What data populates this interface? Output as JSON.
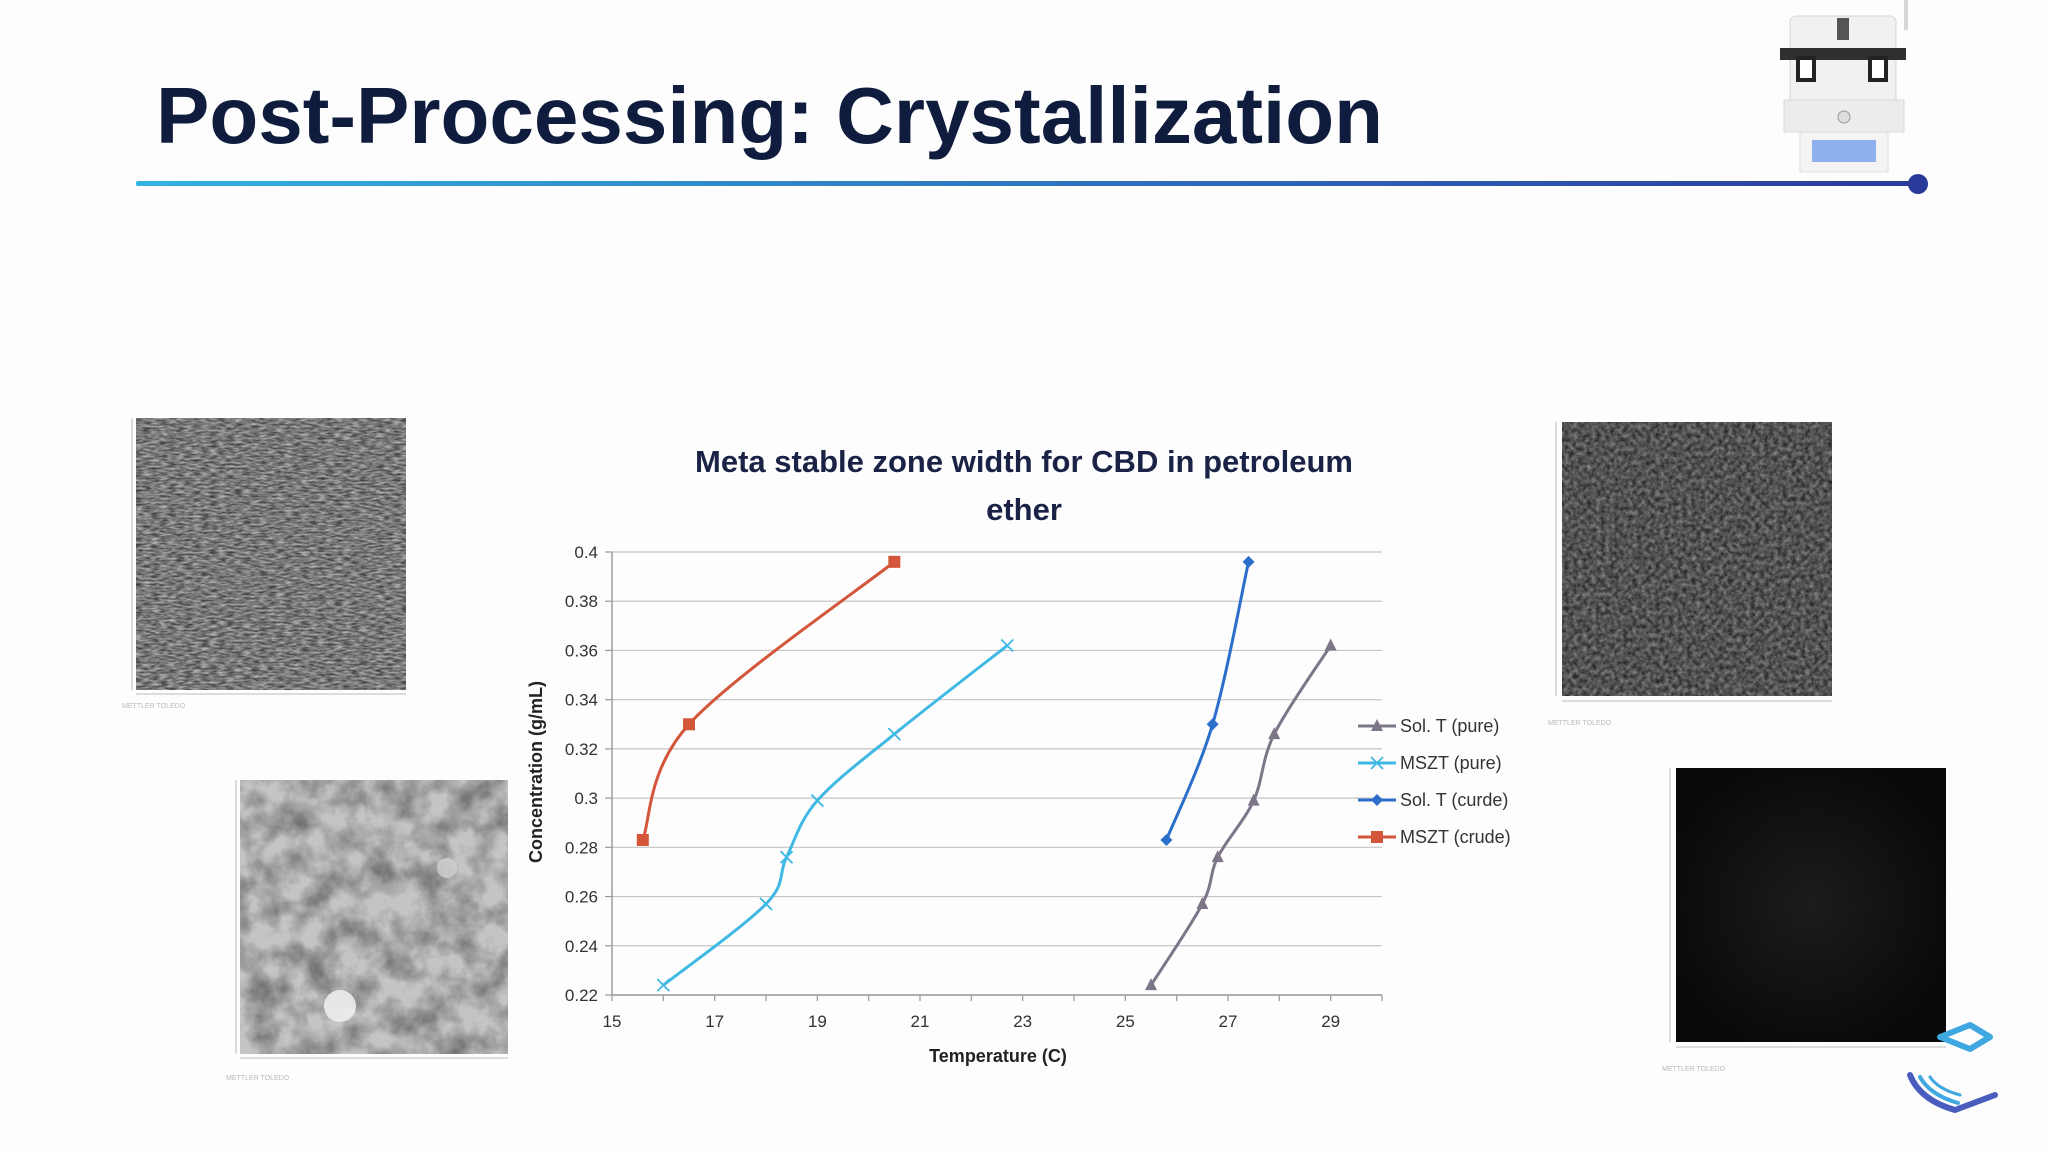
{
  "slide": {
    "title": "Post-Processing: Crystallization"
  },
  "colors": {
    "title_text": "#101c3d",
    "rule_start": "#33b1e3",
    "rule_end": "#2b3a9a",
    "sol_pure": "#7d7689",
    "mszt_pure": "#3fb8e3",
    "sol_crude": "#2b6fcb",
    "mszt_crude": "#d3553a"
  },
  "icons": {
    "top_right": "lab-instrument-icon",
    "bottom_right": "company-logo-mark"
  },
  "photos": [
    {
      "name": "microscopy-image-pure-needles",
      "caption": "METTLER TOLEDO"
    },
    {
      "name": "microscopy-image-crude-clusters",
      "caption": "METTLER TOLEDO"
    },
    {
      "name": "microscopy-image-dark-texture",
      "caption": "METTLER TOLEDO"
    },
    {
      "name": "microscopy-image-dark-blank",
      "caption": "METTLER TOLEDO"
    }
  ],
  "chart_data": {
    "type": "line",
    "title": "Meta stable zone width for CBD in petroleum ether",
    "title_lines": [
      "Meta stable zone width for CBD in petroleum",
      "ether"
    ],
    "xlabel": "Temperature (C)",
    "ylabel": "Concentration (g/mL)",
    "xlim": [
      15,
      30
    ],
    "ylim": [
      0.22,
      0.4
    ],
    "xticks": [
      "15",
      "17",
      "19",
      "21",
      "23",
      "25",
      "27",
      "29"
    ],
    "yticks": [
      "0.22",
      "0.24",
      "0.26",
      "0.28",
      "0.3",
      "0.32",
      "0.34",
      "0.36",
      "0.38",
      "0.4"
    ],
    "grid": "horizontal",
    "legend_position": "right",
    "series": [
      {
        "name": "Sol. T (pure)",
        "marker": "triangle",
        "color": "#7d7689",
        "points": [
          [
            25.5,
            0.224
          ],
          [
            26.5,
            0.257
          ],
          [
            26.8,
            0.276
          ],
          [
            27.5,
            0.299
          ],
          [
            27.9,
            0.326
          ],
          [
            29.0,
            0.362
          ]
        ]
      },
      {
        "name": "MSZT (pure)",
        "marker": "x",
        "color": "#3fb8e3",
        "points": [
          [
            16.0,
            0.224
          ],
          [
            18.0,
            0.257
          ],
          [
            18.4,
            0.276
          ],
          [
            19.0,
            0.299
          ],
          [
            20.5,
            0.326
          ],
          [
            22.7,
            0.362
          ]
        ]
      },
      {
        "name": "Sol. T (curde)",
        "marker": "diamond",
        "color": "#2b6fcb",
        "points": [
          [
            25.8,
            0.283
          ],
          [
            26.7,
            0.33
          ],
          [
            27.4,
            0.396
          ]
        ]
      },
      {
        "name": "MSZT (crude)",
        "marker": "square",
        "color": "#d3553a",
        "points": [
          [
            15.6,
            0.283
          ],
          [
            16.5,
            0.33
          ],
          [
            20.5,
            0.396
          ]
        ]
      }
    ]
  }
}
